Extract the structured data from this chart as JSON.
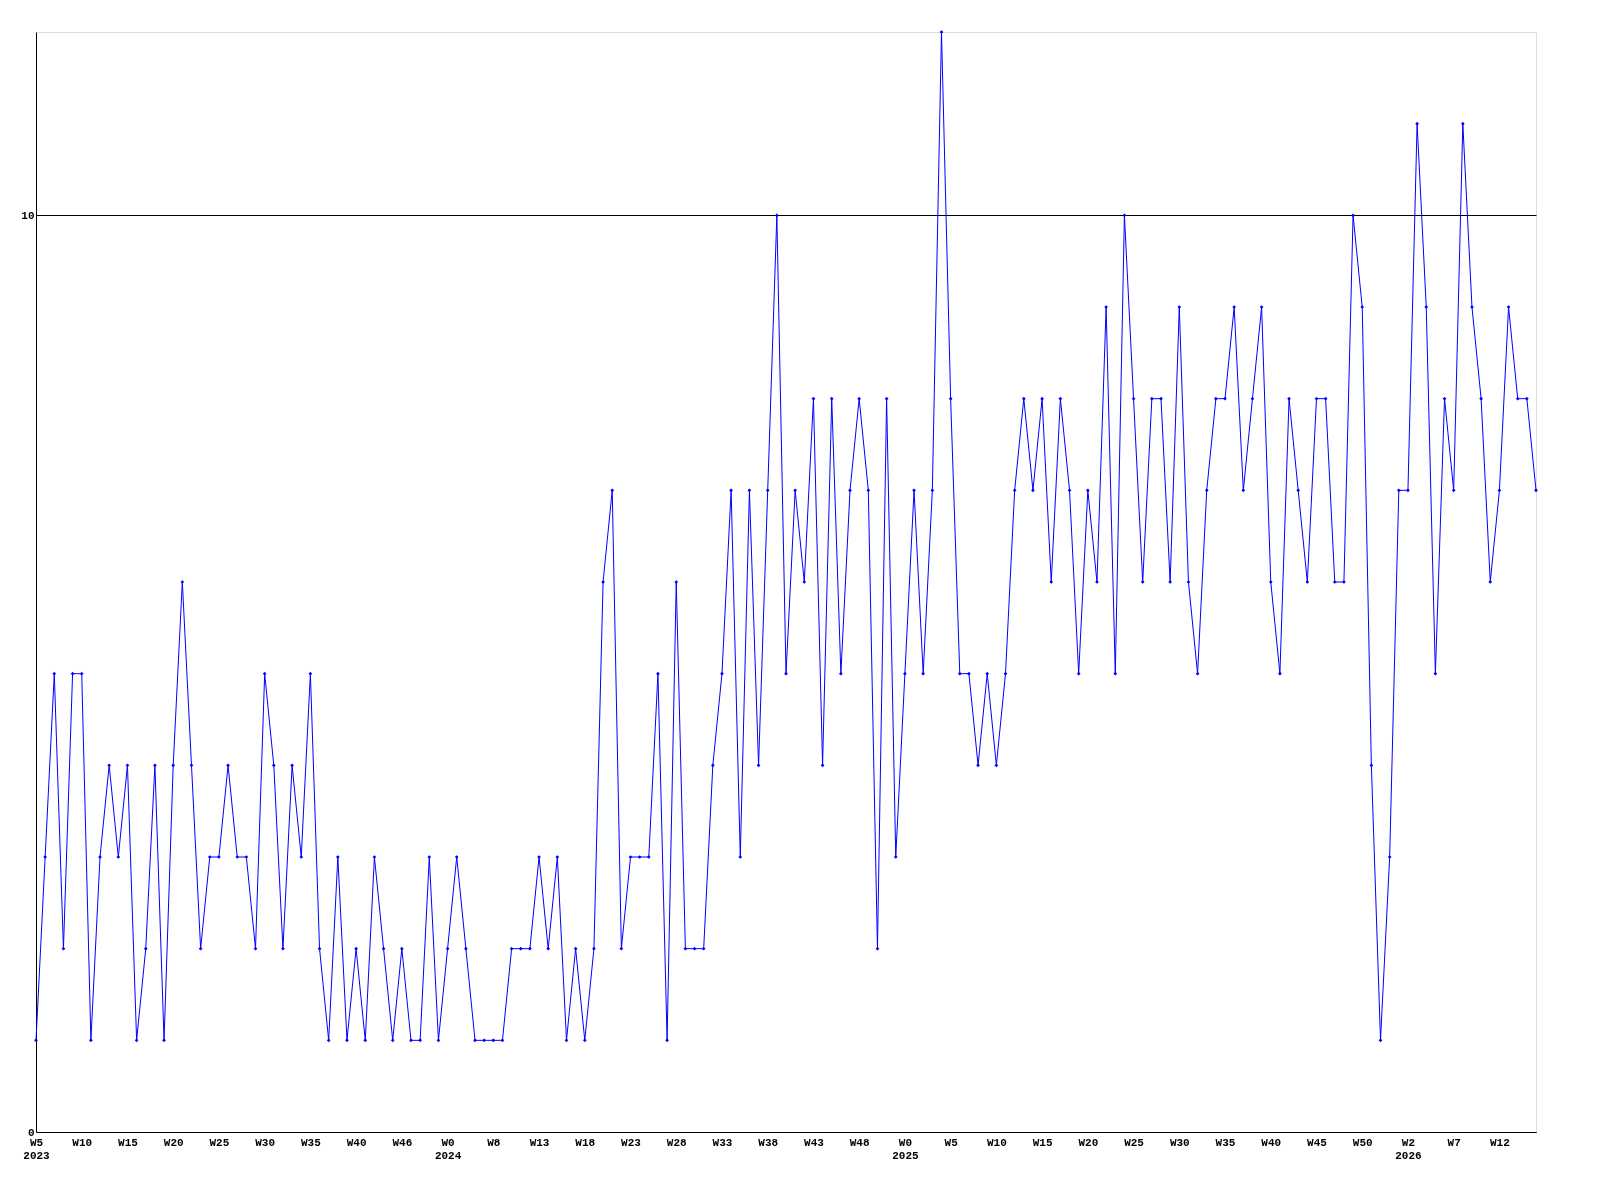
{
  "chart_data": {
    "type": "line",
    "categories": [
      "W5\n2023",
      null,
      null,
      null,
      null,
      "W10",
      null,
      null,
      null,
      null,
      "W15",
      null,
      null,
      null,
      null,
      "W20",
      null,
      null,
      null,
      null,
      "W25",
      null,
      null,
      null,
      null,
      "W30",
      null,
      null,
      null,
      null,
      "W35",
      null,
      null,
      null,
      null,
      "W40",
      null,
      null,
      null,
      null,
      "W46",
      null,
      null,
      null,
      null,
      "W0\n2024",
      null,
      null,
      null,
      null,
      "W8",
      null,
      null,
      null,
      null,
      "W13",
      null,
      null,
      null,
      null,
      "W18",
      null,
      null,
      null,
      null,
      "W23",
      null,
      null,
      null,
      null,
      "W28",
      null,
      null,
      null,
      null,
      "W33",
      null,
      null,
      null,
      null,
      "W38",
      null,
      null,
      null,
      null,
      "W43",
      null,
      null,
      null,
      null,
      "W48",
      null,
      null,
      null,
      null,
      "W0\n2025",
      null,
      null,
      null,
      null,
      "W5",
      null,
      null,
      null,
      null,
      "W10",
      null,
      null,
      null,
      null,
      "W15",
      null,
      null,
      null,
      null,
      "W20",
      null,
      null,
      null,
      null,
      "W25",
      null,
      null,
      null,
      null,
      "W30",
      null,
      null,
      null,
      null,
      "W35",
      null,
      null,
      null,
      null,
      "W40",
      null,
      null,
      null,
      null,
      "W45",
      null,
      null,
      null,
      null,
      "W50",
      null,
      null,
      null,
      null,
      "W2\n2026",
      null,
      null,
      null,
      null,
      "W7",
      null,
      null,
      null,
      null,
      "W12",
      null,
      null,
      null,
      null
    ],
    "series": [
      {
        "color": "#0000ff",
        "values": [
          1,
          3,
          5,
          2,
          5,
          5,
          1,
          3,
          4,
          3,
          4,
          1,
          2,
          4,
          1,
          4,
          6,
          4,
          2,
          3,
          3,
          4,
          3,
          3,
          2,
          5,
          4,
          2,
          4,
          3,
          5,
          2,
          1,
          3,
          1,
          2,
          1,
          3,
          2,
          1,
          2,
          1,
          1,
          3,
          1,
          2,
          3,
          2,
          1,
          1,
          1,
          1,
          2,
          2,
          2,
          3,
          2,
          3,
          1,
          2,
          1,
          2,
          6,
          7,
          2,
          3,
          3,
          3,
          5,
          1,
          6,
          2,
          2,
          2,
          4,
          5,
          7,
          3,
          7,
          4,
          7,
          10,
          5,
          7,
          6,
          8,
          4,
          8,
          5,
          7,
          8,
          7,
          2,
          8,
          3,
          5,
          7,
          5,
          7,
          12,
          8,
          5,
          5,
          4,
          5,
          4,
          5,
          7,
          8,
          7,
          8,
          6,
          8,
          7,
          5,
          7,
          6,
          9,
          5,
          10,
          8,
          6,
          8,
          8,
          6,
          9,
          6,
          5,
          7,
          8,
          8,
          9,
          7,
          8,
          9,
          6,
          5,
          8,
          7,
          6,
          8,
          8,
          6,
          6,
          10,
          9,
          4,
          1,
          3,
          7,
          7,
          11,
          9,
          5,
          8,
          7,
          11,
          9,
          8,
          6,
          7,
          9,
          8,
          8,
          7
        ]
      }
    ],
    "ylim": [
      0,
      12
    ],
    "yticks": [
      0,
      10
    ],
    "grid": "y",
    "marker": "diamond",
    "line_style": "solid"
  }
}
